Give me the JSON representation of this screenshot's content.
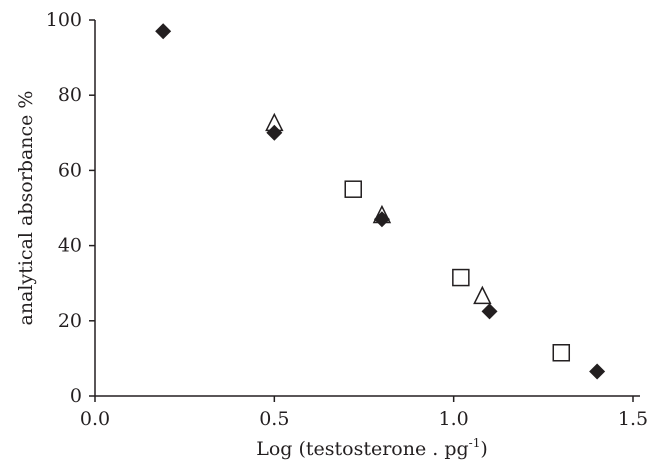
{
  "chart_data": {
    "type": "scatter",
    "title": "",
    "xlabel": "Log (testosterone . pg",
    "xlabel_superscript": "-1",
    "xlabel_suffix": ")",
    "ylabel": "analytical absorbance %",
    "xlim": [
      0.0,
      1.5
    ],
    "ylim": [
      0,
      100
    ],
    "x_ticks": [
      "0.0",
      "0.5",
      "1.0",
      "1.5"
    ],
    "y_ticks": [
      "0",
      "20",
      "40",
      "60",
      "80",
      "100"
    ],
    "grid": false,
    "series": [
      {
        "marker": "filled-diamond",
        "color": "#231f20",
        "points": [
          {
            "x": 0.19,
            "y": 97
          },
          {
            "x": 0.5,
            "y": 70
          },
          {
            "x": 0.8,
            "y": 47
          },
          {
            "x": 1.1,
            "y": 22.5
          },
          {
            "x": 1.4,
            "y": 6.5
          }
        ]
      },
      {
        "marker": "open-triangle",
        "color": "#231f20",
        "points": [
          {
            "x": 0.5,
            "y": 72.5
          },
          {
            "x": 0.8,
            "y": 48
          },
          {
            "x": 1.08,
            "y": 26.5
          }
        ]
      },
      {
        "marker": "open-square",
        "color": "#231f20",
        "points": [
          {
            "x": 0.72,
            "y": 55
          },
          {
            "x": 1.02,
            "y": 31.5
          },
          {
            "x": 1.3,
            "y": 11.5
          }
        ]
      }
    ]
  }
}
